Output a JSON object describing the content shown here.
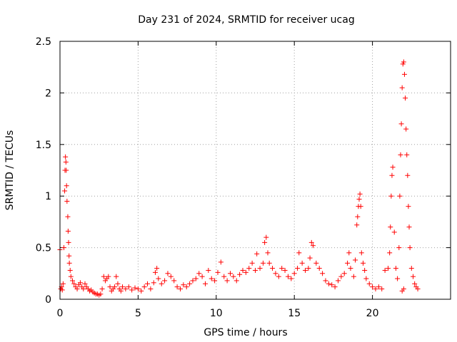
{
  "chart_data": {
    "type": "scatter",
    "title": "Day 231 of 2024, SRMTID for receiver ucag",
    "xlabel": "GPS time / hours",
    "ylabel": "SRMTID / TECUs",
    "xlim": [
      0,
      25
    ],
    "ylim": [
      0,
      2.5
    ],
    "xticks": [
      0,
      5,
      10,
      15,
      20
    ],
    "xtick_labels": [
      "0",
      "5",
      "10",
      "15",
      "20"
    ],
    "yticks": [
      0,
      0.5,
      1,
      1.5,
      2,
      2.5
    ],
    "ytick_labels": [
      "0",
      "0.5",
      "1",
      "1.5",
      "2",
      "2.5"
    ],
    "grid": true,
    "marker": "+",
    "color": "#ff0000",
    "series": [
      {
        "name": "SRMTID",
        "points": [
          [
            0.0,
            0.48
          ],
          [
            0.05,
            0.1
          ],
          [
            0.1,
            0.12
          ],
          [
            0.15,
            0.09
          ],
          [
            0.2,
            0.15
          ],
          [
            0.25,
            0.5
          ],
          [
            0.3,
            1.05
          ],
          [
            0.32,
            1.25
          ],
          [
            0.35,
            1.38
          ],
          [
            0.38,
            1.33
          ],
          [
            0.4,
            1.25
          ],
          [
            0.42,
            1.1
          ],
          [
            0.45,
            0.95
          ],
          [
            0.5,
            0.8
          ],
          [
            0.52,
            0.66
          ],
          [
            0.55,
            0.55
          ],
          [
            0.58,
            0.42
          ],
          [
            0.6,
            0.35
          ],
          [
            0.65,
            0.28
          ],
          [
            0.7,
            0.22
          ],
          [
            0.8,
            0.18
          ],
          [
            0.9,
            0.15
          ],
          [
            1.0,
            0.12
          ],
          [
            1.1,
            0.1
          ],
          [
            1.2,
            0.14
          ],
          [
            1.3,
            0.16
          ],
          [
            1.4,
            0.12
          ],
          [
            1.5,
            0.1
          ],
          [
            1.6,
            0.15
          ],
          [
            1.7,
            0.12
          ],
          [
            1.8,
            0.1
          ],
          [
            1.9,
            0.08
          ],
          [
            2.0,
            0.09
          ],
          [
            2.1,
            0.07
          ],
          [
            2.2,
            0.06
          ],
          [
            2.3,
            0.05
          ],
          [
            2.4,
            0.05
          ],
          [
            2.5,
            0.04
          ],
          [
            2.6,
            0.05
          ],
          [
            2.7,
            0.1
          ],
          [
            2.8,
            0.22
          ],
          [
            2.9,
            0.18
          ],
          [
            3.0,
            0.2
          ],
          [
            3.1,
            0.22
          ],
          [
            3.2,
            0.12
          ],
          [
            3.3,
            0.08
          ],
          [
            3.4,
            0.1
          ],
          [
            3.5,
            0.12
          ],
          [
            3.6,
            0.22
          ],
          [
            3.7,
            0.15
          ],
          [
            3.8,
            0.1
          ],
          [
            3.9,
            0.08
          ],
          [
            4.0,
            0.12
          ],
          [
            4.2,
            0.1
          ],
          [
            4.4,
            0.12
          ],
          [
            4.6,
            0.09
          ],
          [
            4.8,
            0.11
          ],
          [
            5.0,
            0.1
          ],
          [
            5.2,
            0.08
          ],
          [
            5.4,
            0.12
          ],
          [
            5.6,
            0.15
          ],
          [
            5.8,
            0.1
          ],
          [
            6.0,
            0.16
          ],
          [
            6.1,
            0.26
          ],
          [
            6.2,
            0.3
          ],
          [
            6.3,
            0.2
          ],
          [
            6.5,
            0.15
          ],
          [
            6.7,
            0.18
          ],
          [
            6.9,
            0.25
          ],
          [
            7.1,
            0.22
          ],
          [
            7.3,
            0.18
          ],
          [
            7.5,
            0.12
          ],
          [
            7.7,
            0.1
          ],
          [
            7.9,
            0.14
          ],
          [
            8.1,
            0.12
          ],
          [
            8.3,
            0.15
          ],
          [
            8.5,
            0.18
          ],
          [
            8.7,
            0.2
          ],
          [
            8.9,
            0.25
          ],
          [
            9.1,
            0.22
          ],
          [
            9.3,
            0.15
          ],
          [
            9.5,
            0.28
          ],
          [
            9.7,
            0.2
          ],
          [
            9.9,
            0.18
          ],
          [
            10.1,
            0.26
          ],
          [
            10.3,
            0.36
          ],
          [
            10.5,
            0.22
          ],
          [
            10.7,
            0.18
          ],
          [
            10.9,
            0.25
          ],
          [
            11.1,
            0.22
          ],
          [
            11.3,
            0.18
          ],
          [
            11.5,
            0.24
          ],
          [
            11.7,
            0.28
          ],
          [
            11.9,
            0.26
          ],
          [
            12.1,
            0.3
          ],
          [
            12.3,
            0.35
          ],
          [
            12.5,
            0.28
          ],
          [
            12.6,
            0.44
          ],
          [
            12.8,
            0.3
          ],
          [
            13.0,
            0.35
          ],
          [
            13.1,
            0.55
          ],
          [
            13.2,
            0.6
          ],
          [
            13.3,
            0.45
          ],
          [
            13.4,
            0.35
          ],
          [
            13.6,
            0.3
          ],
          [
            13.8,
            0.25
          ],
          [
            14.0,
            0.22
          ],
          [
            14.2,
            0.3
          ],
          [
            14.4,
            0.28
          ],
          [
            14.6,
            0.22
          ],
          [
            14.8,
            0.2
          ],
          [
            15.0,
            0.25
          ],
          [
            15.2,
            0.3
          ],
          [
            15.3,
            0.45
          ],
          [
            15.5,
            0.35
          ],
          [
            15.7,
            0.28
          ],
          [
            15.9,
            0.3
          ],
          [
            16.0,
            0.4
          ],
          [
            16.1,
            0.55
          ],
          [
            16.2,
            0.52
          ],
          [
            16.4,
            0.35
          ],
          [
            16.6,
            0.3
          ],
          [
            16.8,
            0.25
          ],
          [
            17.0,
            0.18
          ],
          [
            17.2,
            0.15
          ],
          [
            17.4,
            0.14
          ],
          [
            17.6,
            0.12
          ],
          [
            17.8,
            0.18
          ],
          [
            18.0,
            0.22
          ],
          [
            18.2,
            0.25
          ],
          [
            18.4,
            0.35
          ],
          [
            18.5,
            0.45
          ],
          [
            18.6,
            0.3
          ],
          [
            18.8,
            0.22
          ],
          [
            18.9,
            0.38
          ],
          [
            19.0,
            0.72
          ],
          [
            19.05,
            0.8
          ],
          [
            19.1,
            0.9
          ],
          [
            19.15,
            0.97
          ],
          [
            19.2,
            1.02
          ],
          [
            19.25,
            0.9
          ],
          [
            19.3,
            0.45
          ],
          [
            19.4,
            0.35
          ],
          [
            19.5,
            0.28
          ],
          [
            19.6,
            0.2
          ],
          [
            19.8,
            0.15
          ],
          [
            20.0,
            0.12
          ],
          [
            20.2,
            0.1
          ],
          [
            20.4,
            0.12
          ],
          [
            20.6,
            0.1
          ],
          [
            20.8,
            0.28
          ],
          [
            21.0,
            0.3
          ],
          [
            21.1,
            0.45
          ],
          [
            21.15,
            0.7
          ],
          [
            21.2,
            1.0
          ],
          [
            21.25,
            1.2
          ],
          [
            21.3,
            1.28
          ],
          [
            21.4,
            0.65
          ],
          [
            21.5,
            0.3
          ],
          [
            21.6,
            0.2
          ],
          [
            21.7,
            0.5
          ],
          [
            21.75,
            1.0
          ],
          [
            21.8,
            1.4
          ],
          [
            21.85,
            1.7
          ],
          [
            21.9,
            2.05
          ],
          [
            21.95,
            2.28
          ],
          [
            22.0,
            2.3
          ],
          [
            22.05,
            2.18
          ],
          [
            22.1,
            1.95
          ],
          [
            22.15,
            1.65
          ],
          [
            22.2,
            1.4
          ],
          [
            22.25,
            1.2
          ],
          [
            22.3,
            0.9
          ],
          [
            22.35,
            0.7
          ],
          [
            22.4,
            0.5
          ],
          [
            22.5,
            0.3
          ],
          [
            22.6,
            0.22
          ],
          [
            22.7,
            0.15
          ],
          [
            22.8,
            0.12
          ],
          [
            22.9,
            0.1
          ],
          [
            21.9,
            0.08
          ],
          [
            22.0,
            0.1
          ]
        ]
      }
    ]
  }
}
